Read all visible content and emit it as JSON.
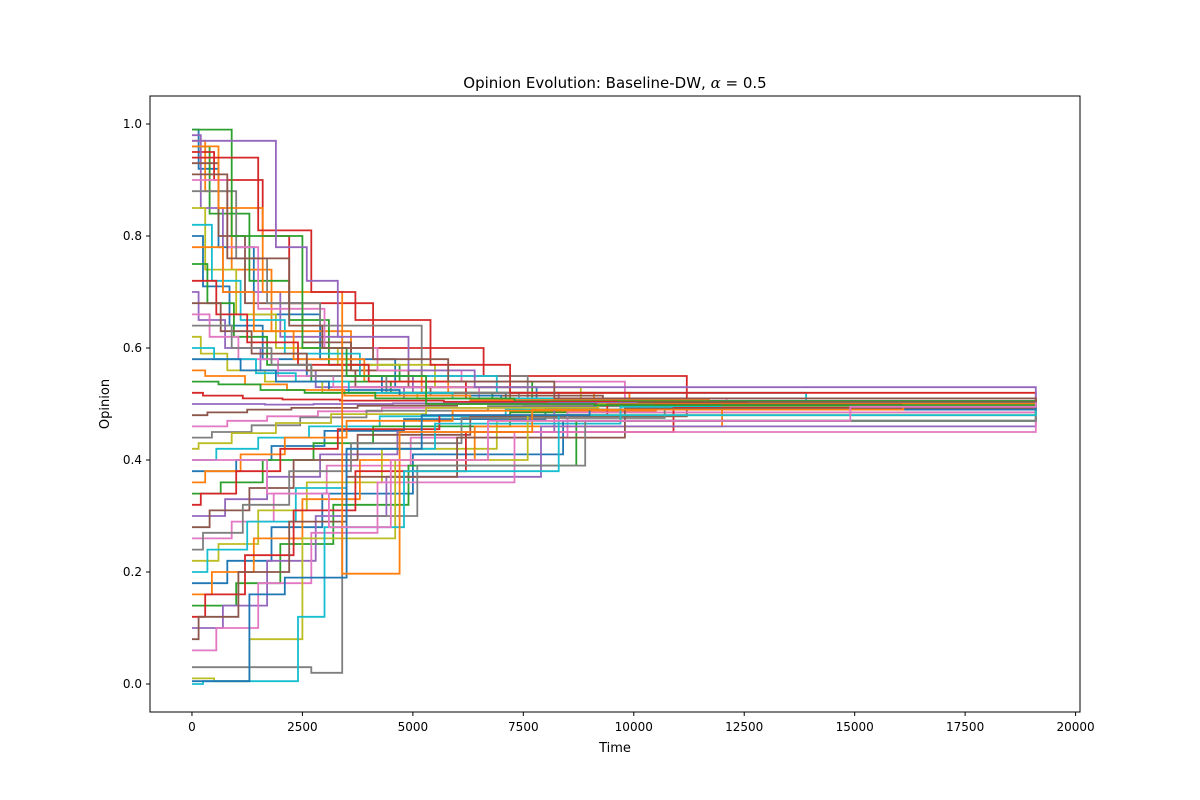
{
  "chart_data": {
    "type": "line",
    "title": "Opinion Evolution: Baseline-DW, ",
    "title_symbol": "α",
    "title_suffix": " = 0.5",
    "xlabel": "Time",
    "ylabel": "Opinion",
    "xlim": [
      -950,
      20100
    ],
    "ylim": [
      -0.05,
      1.05
    ],
    "xticks": [
      0,
      2500,
      5000,
      7500,
      10000,
      12500,
      15000,
      17500,
      20000
    ],
    "xtick_labels": [
      "0",
      "2500",
      "5000",
      "7500",
      "10000",
      "12500",
      "15000",
      "17500",
      "20000"
    ],
    "yticks": [
      0.0,
      0.2,
      0.4,
      0.6,
      0.8,
      1.0
    ],
    "ytick_labels": [
      "0.0",
      "0.2",
      "0.4",
      "0.6",
      "0.8",
      "1.0"
    ],
    "grid": false,
    "legend": "none",
    "steps": "post",
    "palette": [
      "#1f77b4",
      "#ff7f0e",
      "#2ca02c",
      "#d62728",
      "#9467bd",
      "#8c564b",
      "#e377c2",
      "#7f7f7f",
      "#bcbd22",
      "#17becf"
    ],
    "series": [
      {
        "x": [
          0,
          150,
          600,
          1400,
          2900,
          4600,
          7800,
          19100
        ],
        "values": [
          0.99,
          0.92,
          0.78,
          0.66,
          0.58,
          0.53,
          0.503,
          0.503
        ]
      },
      {
        "x": [
          0,
          300,
          900,
          1800,
          3600,
          5200,
          9100,
          19100
        ],
        "values": [
          0.97,
          0.88,
          0.74,
          0.63,
          0.56,
          0.52,
          0.504,
          0.503
        ]
      },
      {
        "x": [
          0,
          400,
          1300,
          2200,
          3100,
          4700,
          7700,
          19100
        ],
        "values": [
          0.96,
          0.84,
          0.72,
          0.65,
          0.57,
          0.54,
          0.505,
          0.503
        ]
      },
      {
        "x": [
          0,
          500,
          1600,
          2200,
          4100,
          6600,
          11200,
          19100
        ],
        "values": [
          0.95,
          0.9,
          0.8,
          0.68,
          0.6,
          0.55,
          0.505,
          0.503
        ]
      },
      {
        "x": [
          0,
          200,
          700,
          2000,
          3400,
          5000,
          8300,
          19100
        ],
        "values": [
          0.98,
          0.85,
          0.7,
          0.62,
          0.55,
          0.52,
          0.504,
          0.503
        ]
      },
      {
        "x": [
          0,
          600,
          1200,
          2500,
          3600,
          4900,
          7200,
          19100
        ],
        "values": [
          0.93,
          0.8,
          0.68,
          0.61,
          0.56,
          0.53,
          0.505,
          0.503
        ]
      },
      {
        "x": [
          0,
          800,
          1500,
          3000,
          4200,
          6100,
          9800,
          19100
        ],
        "values": [
          0.9,
          0.78,
          0.67,
          0.6,
          0.56,
          0.54,
          0.504,
          0.503
        ]
      },
      {
        "x": [
          0,
          1000,
          1700,
          2900,
          5200,
          7600,
          19100
        ],
        "values": [
          0.88,
          0.76,
          0.68,
          0.64,
          0.55,
          0.51,
          0.503
        ]
      },
      {
        "x": [
          0,
          300,
          1000,
          1900,
          3300,
          5500,
          8800,
          19100
        ],
        "values": [
          0.85,
          0.74,
          0.66,
          0.6,
          0.57,
          0.53,
          0.505,
          0.503
        ]
      },
      {
        "x": [
          0,
          450,
          1100,
          2100,
          3800,
          6900,
          13900,
          19100
        ],
        "values": [
          0.82,
          0.72,
          0.65,
          0.59,
          0.55,
          0.52,
          0.503,
          0.503
        ]
      },
      {
        "x": [
          0,
          250,
          850,
          1600,
          2600,
          4300,
          7100,
          19100
        ],
        "values": [
          0.8,
          0.71,
          0.64,
          0.58,
          0.55,
          0.52,
          0.504,
          0.503
        ]
      },
      {
        "x": [
          0,
          700,
          1400,
          2300,
          3900,
          5800,
          9900,
          19100
        ],
        "values": [
          0.78,
          0.7,
          0.63,
          0.58,
          0.54,
          0.52,
          0.503,
          0.503
        ]
      },
      {
        "x": [
          0,
          350,
          950,
          1700,
          2700,
          4500,
          6800,
          19100
        ],
        "values": [
          0.75,
          0.68,
          0.62,
          0.57,
          0.54,
          0.52,
          0.504,
          0.503
        ]
      },
      {
        "x": [
          0,
          550,
          1250,
          2400,
          4000,
          6200,
          10300,
          19100
        ],
        "values": [
          0.72,
          0.66,
          0.61,
          0.57,
          0.54,
          0.51,
          0.503,
          0.503
        ]
      },
      {
        "x": [
          0,
          150,
          750,
          1550,
          2800,
          4800,
          8600,
          19100
        ],
        "values": [
          0.7,
          0.65,
          0.6,
          0.56,
          0.53,
          0.51,
          0.503,
          0.503
        ]
      },
      {
        "x": [
          0,
          650,
          1350,
          2600,
          3700,
          5400,
          9300,
          19100
        ],
        "values": [
          0.68,
          0.63,
          0.59,
          0.56,
          0.53,
          0.515,
          0.504,
          0.503
        ]
      },
      {
        "x": [
          0,
          400,
          1050,
          1950,
          3200,
          6500,
          12100,
          19100
        ],
        "values": [
          0.66,
          0.62,
          0.58,
          0.55,
          0.53,
          0.51,
          0.503,
          0.503
        ]
      },
      {
        "x": [
          0,
          900,
          1800,
          2700,
          4400,
          7400,
          19100
        ],
        "values": [
          0.64,
          0.6,
          0.57,
          0.55,
          0.52,
          0.505,
          0.503
        ]
      },
      {
        "x": [
          0,
          200,
          800,
          1650,
          2950,
          5100,
          8900,
          19100
        ],
        "values": [
          0.62,
          0.59,
          0.56,
          0.54,
          0.52,
          0.51,
          0.503,
          0.503
        ]
      },
      {
        "x": [
          0,
          500,
          1450,
          2350,
          3550,
          5900,
          10800,
          19100
        ],
        "values": [
          0.6,
          0.58,
          0.555,
          0.54,
          0.52,
          0.51,
          0.503,
          0.503
        ]
      },
      {
        "x": [
          0,
          1100,
          1900,
          3100,
          4700,
          7000,
          19100
        ],
        "values": [
          0.58,
          0.56,
          0.54,
          0.525,
          0.515,
          0.505,
          0.503
        ]
      },
      {
        "x": [
          0,
          300,
          1200,
          2150,
          3450,
          6300,
          11700,
          19100
        ],
        "values": [
          0.56,
          0.55,
          0.535,
          0.525,
          0.515,
          0.507,
          0.503,
          0.503
        ]
      },
      {
        "x": [
          0,
          600,
          1550,
          2550,
          4150,
          7300,
          19100
        ],
        "values": [
          0.54,
          0.535,
          0.525,
          0.52,
          0.51,
          0.505,
          0.503
        ]
      },
      {
        "x": [
          0,
          250,
          1150,
          2050,
          3350,
          5700,
          9600,
          19100
        ],
        "values": [
          0.52,
          0.515,
          0.51,
          0.508,
          0.506,
          0.504,
          0.503,
          0.503
        ]
      },
      {
        "x": [
          0,
          700,
          1650,
          2750,
          4550,
          8100,
          19100
        ],
        "values": [
          0.5,
          0.5,
          0.499,
          0.5,
          0.501,
          0.502,
          0.503
        ]
      },
      {
        "x": [
          0,
          350,
          1250,
          2250,
          3750,
          6000,
          10100,
          19100
        ],
        "values": [
          0.48,
          0.485,
          0.49,
          0.493,
          0.497,
          0.5,
          0.503,
          0.503
        ]
      },
      {
        "x": [
          0,
          800,
          1700,
          2850,
          4300,
          7500,
          19100
        ],
        "values": [
          0.46,
          0.47,
          0.478,
          0.487,
          0.493,
          0.498,
          0.503
        ]
      },
      {
        "x": [
          0,
          450,
          1350,
          2450,
          3950,
          6700,
          12600,
          19100
        ],
        "values": [
          0.44,
          0.45,
          0.462,
          0.476,
          0.488,
          0.496,
          0.501,
          0.503
        ]
      },
      {
        "x": [
          0,
          150,
          900,
          1900,
          3150,
          5300,
          9200,
          19100
        ],
        "values": [
          0.42,
          0.43,
          0.448,
          0.466,
          0.482,
          0.493,
          0.5,
          0.503
        ]
      },
      {
        "x": [
          0,
          550,
          1500,
          2650,
          4250,
          7100,
          15000,
          19100
        ],
        "values": [
          0.4,
          0.42,
          0.44,
          0.46,
          0.478,
          0.49,
          0.496,
          0.503
        ]
      },
      {
        "x": [
          0,
          1000,
          1800,
          3000,
          4800,
          8000,
          19100
        ],
        "values": [
          0.38,
          0.4,
          0.425,
          0.452,
          0.473,
          0.49,
          0.503
        ]
      },
      {
        "x": [
          0,
          300,
          1100,
          2100,
          3500,
          5900,
          10500,
          19100
        ],
        "values": [
          0.36,
          0.38,
          0.41,
          0.44,
          0.47,
          0.488,
          0.5,
          0.503
        ]
      },
      {
        "x": [
          0,
          650,
          1600,
          2750,
          4100,
          7200,
          19100
        ],
        "values": [
          0.34,
          0.36,
          0.4,
          0.43,
          0.46,
          0.485,
          0.503
        ]
      },
      {
        "x": [
          0,
          200,
          1000,
          2000,
          3300,
          5600,
          9400,
          19100
        ],
        "values": [
          0.32,
          0.34,
          0.38,
          0.42,
          0.455,
          0.48,
          0.499,
          0.503
        ]
      },
      {
        "x": [
          0,
          750,
          1700,
          2900,
          4650,
          8200,
          19100
        ],
        "values": [
          0.3,
          0.33,
          0.37,
          0.41,
          0.45,
          0.49,
          0.503
        ]
      },
      {
        "x": [
          0,
          400,
          1300,
          2300,
          3750,
          6300,
          11200,
          19100
        ],
        "values": [
          0.28,
          0.31,
          0.35,
          0.4,
          0.445,
          0.478,
          0.498,
          0.503
        ]
      },
      {
        "x": [
          0,
          900,
          1850,
          3050,
          4950,
          8500,
          19100
        ],
        "values": [
          0.26,
          0.29,
          0.34,
          0.39,
          0.44,
          0.485,
          0.503
        ]
      },
      {
        "x": [
          0,
          250,
          1150,
          2200,
          3600,
          6100,
          10700,
          19100
        ],
        "values": [
          0.24,
          0.27,
          0.32,
          0.38,
          0.43,
          0.475,
          0.497,
          0.503
        ]
      },
      {
        "x": [
          0,
          600,
          1500,
          2600,
          4300,
          6900,
          19100
        ],
        "values": [
          0.22,
          0.25,
          0.31,
          0.36,
          0.42,
          0.47,
          0.503
        ]
      },
      {
        "x": [
          0,
          350,
          1250,
          2350,
          3500,
          5500,
          9700,
          19100
        ],
        "values": [
          0.2,
          0.24,
          0.29,
          0.35,
          0.42,
          0.465,
          0.495,
          0.503
        ]
      },
      {
        "x": [
          0,
          800,
          1800,
          2950,
          5000,
          8400,
          19100
        ],
        "values": [
          0.18,
          0.22,
          0.28,
          0.34,
          0.41,
          0.47,
          0.503
        ]
      },
      {
        "x": [
          0,
          450,
          1400,
          2500,
          3800,
          6400,
          12000,
          19100
        ],
        "values": [
          0.16,
          0.2,
          0.26,
          0.33,
          0.4,
          0.46,
          0.494,
          0.503
        ]
      },
      {
        "x": [
          0,
          1000,
          2000,
          3200,
          4900,
          8700,
          19100
        ],
        "values": [
          0.14,
          0.18,
          0.25,
          0.32,
          0.39,
          0.47,
          0.503
        ]
      },
      {
        "x": [
          0,
          300,
          1200,
          2300,
          3700,
          6200,
          10900,
          19100
        ],
        "values": [
          0.12,
          0.16,
          0.23,
          0.31,
          0.38,
          0.45,
          0.493,
          0.503
        ]
      },
      {
        "x": [
          0,
          700,
          1700,
          2800,
          4400,
          7900,
          19100
        ],
        "values": [
          0.1,
          0.14,
          0.22,
          0.3,
          0.37,
          0.46,
          0.503
        ]
      },
      {
        "x": [
          0,
          150,
          1050,
          2200,
          3500,
          6000,
          9800,
          19100
        ],
        "values": [
          0.08,
          0.12,
          0.2,
          0.29,
          0.37,
          0.44,
          0.492,
          0.503
        ]
      },
      {
        "x": [
          0,
          550,
          1500,
          2700,
          4200,
          7300,
          19100
        ],
        "values": [
          0.06,
          0.1,
          0.18,
          0.27,
          0.36,
          0.45,
          0.503
        ]
      },
      {
        "x": [
          0,
          1300,
          2700,
          3400,
          5100,
          8900,
          19100
        ],
        "values": [
          0.03,
          0.03,
          0.02,
          0.3,
          0.39,
          0.47,
          0.503
        ]
      },
      {
        "x": [
          0,
          500,
          1300,
          2500,
          4600,
          7600,
          19100
        ],
        "values": [
          0.01,
          0.005,
          0.08,
          0.26,
          0.4,
          0.48,
          0.503
        ]
      },
      {
        "x": [
          0,
          250,
          2400,
          3000,
          4800,
          8300,
          19100
        ],
        "values": [
          0.0,
          0.005,
          0.12,
          0.28,
          0.38,
          0.48,
          0.503
        ]
      },
      {
        "x": [
          0,
          1300,
          2100,
          3500,
          5200,
          9000,
          19100
        ],
        "values": [
          0.005,
          0.16,
          0.19,
          0.42,
          0.48,
          0.49,
          0.503
        ]
      },
      {
        "x": [
          0,
          600,
          1600,
          3400,
          4700,
          7700,
          16100,
          19100
        ],
        "values": [
          0.96,
          0.85,
          0.7,
          0.197,
          0.45,
          0.49,
          0.5,
          0.503
        ]
      },
      {
        "x": [
          0,
          900,
          2500,
          3500,
          5300,
          9100,
          19100
        ],
        "values": [
          0.99,
          0.8,
          0.6,
          0.55,
          0.5,
          0.498,
          0.503
        ]
      },
      {
        "x": [
          0,
          1500,
          2700,
          3700,
          5400,
          7200,
          19100
        ],
        "values": [
          0.94,
          0.81,
          0.7,
          0.65,
          0.57,
          0.52,
          0.503
        ]
      },
      {
        "x": [
          0,
          1900,
          2600,
          3300,
          4900,
          6400,
          19100
        ],
        "values": [
          0.97,
          0.78,
          0.72,
          0.62,
          0.56,
          0.53,
          0.503
        ]
      },
      {
        "x": [
          0,
          800,
          2200,
          2950,
          4100,
          5800,
          8200,
          19100
        ],
        "values": [
          0.91,
          0.76,
          0.64,
          0.6,
          0.58,
          0.54,
          0.51,
          0.503
        ]
      },
      {
        "x": [
          0,
          1700,
          3100,
          4500,
          6700,
          14900,
          19100
        ],
        "values": [
          0.4,
          0.34,
          0.28,
          0.4,
          0.47,
          0.495,
          0.503
        ]
      }
    ]
  }
}
